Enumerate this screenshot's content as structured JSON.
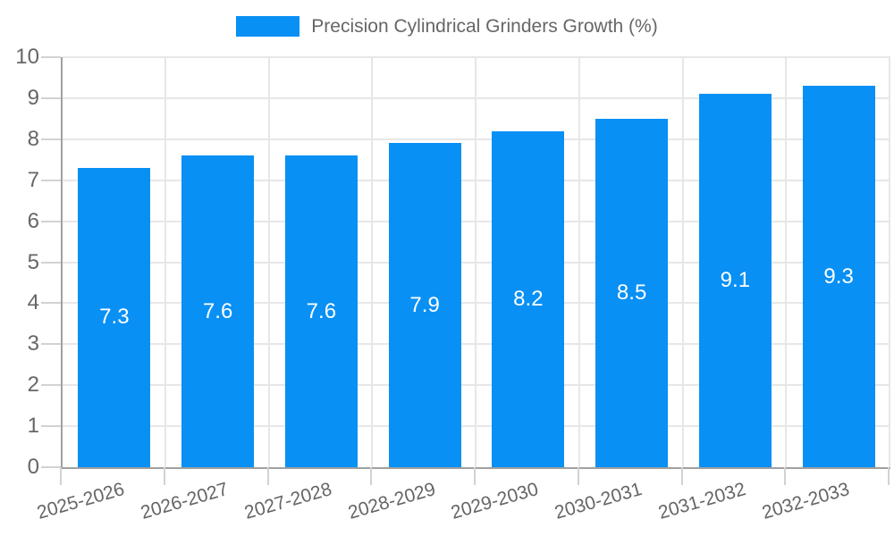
{
  "legend": {
    "label": "Precision Cylindrical Grinders Growth (%)"
  },
  "colors": {
    "bar": "#0990f5",
    "axis": "#a0a0a0",
    "grid": "#e7e7e7",
    "tick": "#d2d2d2",
    "text_muted": "#666666",
    "value_label_text": "#ffffff",
    "background": "#ffffff"
  },
  "chart_data": {
    "type": "bar",
    "title": "Precision Cylindrical Grinders Growth (%)",
    "categories": [
      "2025-2026",
      "2026-2027",
      "2027-2028",
      "2028-2029",
      "2029-2030",
      "2030-2031",
      "2031-2032",
      "2032-2033"
    ],
    "values": [
      7.3,
      7.6,
      7.6,
      7.9,
      8.2,
      8.5,
      9.1,
      9.3
    ],
    "value_labels": [
      "7.3",
      "7.6",
      "7.6",
      "7.9",
      "8.2",
      "8.5",
      "9.1",
      "9.3"
    ],
    "xlabel": "",
    "ylabel": "",
    "ylim": [
      0,
      10
    ],
    "yticks": [
      0,
      1,
      2,
      3,
      4,
      5,
      6,
      7,
      8,
      9,
      10
    ],
    "grid": true,
    "legend_position": "top",
    "bar_label_position": "center-inside",
    "x_label_rotation_deg": -16
  }
}
